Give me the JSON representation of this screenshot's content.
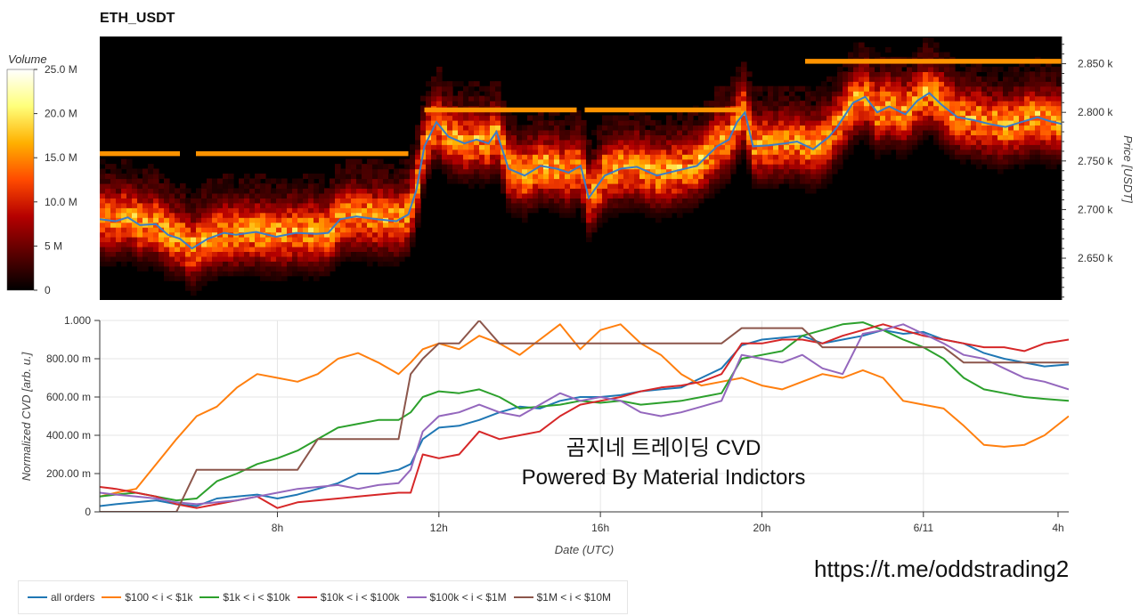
{
  "chart_data": [
    {
      "type": "heatmap",
      "title": "ETH_USDT",
      "ylabel": "Price [USDT]",
      "colorbar_label": "Volume",
      "colorbar_ticks": [
        "25.0 M",
        "20.0 M",
        "15.0 M",
        "10.0 M",
        "5 M",
        "0"
      ],
      "colorbar_values": [
        25,
        20,
        15,
        10,
        5,
        0
      ],
      "color_scale": [
        "#000000",
        "#5a0000",
        "#b40000",
        "#ff4a00",
        "#ffb000",
        "#ffff7a",
        "#ffffff"
      ],
      "x_range_hours": [
        3.6,
        27.6
      ],
      "ylim": [
        2607,
        2878
      ],
      "ytick_labels": [
        "2.850 k",
        "2.800 k",
        "2.750 k",
        "2.700 k",
        "2.650 k"
      ],
      "ytick_values": [
        2850,
        2800,
        2750,
        2700,
        2650
      ],
      "price_series": {
        "x": [
          3.6,
          4.0,
          4.3,
          4.6,
          5.0,
          5.3,
          5.6,
          5.9,
          6.3,
          6.7,
          7.0,
          7.5,
          8.0,
          8.5,
          9.0,
          9.3,
          9.6,
          10.0,
          10.5,
          11.0,
          11.3,
          11.5,
          11.7,
          12.0,
          12.3,
          12.7,
          13.0,
          13.3,
          13.5,
          13.8,
          14.2,
          14.6,
          15.0,
          15.3,
          15.6,
          15.8,
          16.2,
          16.6,
          17.0,
          17.5,
          18.0,
          18.5,
          19.0,
          19.3,
          19.5,
          19.7,
          19.9,
          20.3,
          20.7,
          21.0,
          21.4,
          21.8,
          22.0,
          22.4,
          22.7,
          23.0,
          23.3,
          23.7,
          24.0,
          24.3,
          24.6,
          25.0,
          25.4,
          25.8,
          26.2,
          26.6,
          27.0,
          27.3,
          27.6
        ],
        "values": [
          2690,
          2688,
          2692,
          2684,
          2685,
          2674,
          2670,
          2660,
          2670,
          2676,
          2674,
          2677,
          2672,
          2676,
          2675,
          2676,
          2690,
          2693,
          2690,
          2688,
          2695,
          2720,
          2765,
          2790,
          2775,
          2768,
          2772,
          2768,
          2780,
          2742,
          2735,
          2745,
          2742,
          2738,
          2745,
          2712,
          2735,
          2742,
          2744,
          2735,
          2740,
          2745,
          2765,
          2772,
          2790,
          2800,
          2765,
          2766,
          2768,
          2770,
          2762,
          2775,
          2785,
          2810,
          2816,
          2800,
          2806,
          2798,
          2812,
          2820,
          2808,
          2795,
          2792,
          2788,
          2785,
          2790,
          2795,
          2791,
          2788
        ]
      }
    },
    {
      "type": "line",
      "xlabel": "Date (UTC)",
      "ylabel": "Normalized CVD [arb. u.]",
      "x_range_hours": [
        3.6,
        27.6
      ],
      "ylim": [
        0,
        1
      ],
      "xtick_labels": [
        "8h",
        "12h",
        "16h",
        "20h",
        "6/11",
        "4h"
      ],
      "xtick_values": [
        8,
        12,
        16,
        20,
        24,
        28
      ],
      "ytick_labels": [
        "1.000",
        "800.00 m",
        "600.00 m",
        "400.00 m",
        "200.00 m",
        "0"
      ],
      "ytick_values": [
        1.0,
        0.8,
        0.6,
        0.4,
        0.2,
        0
      ],
      "x": [
        3.6,
        4.0,
        4.5,
        5.0,
        5.5,
        6.0,
        6.5,
        7.0,
        7.5,
        8.0,
        8.5,
        9.0,
        9.5,
        10.0,
        10.5,
        11.0,
        11.3,
        11.6,
        12.0,
        12.5,
        13.0,
        13.5,
        14.0,
        14.5,
        15.0,
        15.5,
        16.0,
        16.5,
        17.0,
        17.5,
        18.0,
        18.5,
        19.0,
        19.5,
        20.0,
        20.5,
        21.0,
        21.5,
        22.0,
        22.5,
        23.0,
        23.5,
        24.0,
        24.5,
        25.0,
        25.5,
        26.0,
        26.5,
        27.0,
        27.6
      ],
      "series": [
        {
          "name": "all orders",
          "color": "#1f77b4",
          "values": [
            0.03,
            0.04,
            0.05,
            0.06,
            0.04,
            0.03,
            0.07,
            0.08,
            0.09,
            0.07,
            0.09,
            0.12,
            0.15,
            0.2,
            0.2,
            0.22,
            0.25,
            0.38,
            0.44,
            0.45,
            0.48,
            0.52,
            0.55,
            0.54,
            0.58,
            0.6,
            0.6,
            0.61,
            0.63,
            0.64,
            0.65,
            0.7,
            0.75,
            0.87,
            0.9,
            0.91,
            0.92,
            0.88,
            0.9,
            0.92,
            0.95,
            0.93,
            0.94,
            0.9,
            0.88,
            0.83,
            0.8,
            0.78,
            0.76,
            0.77
          ]
        },
        {
          "name": "$100 < i < $1k",
          "color": "#ff7f0e",
          "values": [
            0.08,
            0.1,
            0.12,
            0.25,
            0.38,
            0.5,
            0.55,
            0.65,
            0.72,
            0.7,
            0.68,
            0.72,
            0.8,
            0.83,
            0.78,
            0.72,
            0.78,
            0.85,
            0.88,
            0.85,
            0.92,
            0.88,
            0.82,
            0.9,
            0.98,
            0.85,
            0.95,
            0.98,
            0.88,
            0.82,
            0.72,
            0.66,
            0.68,
            0.7,
            0.66,
            0.64,
            0.68,
            0.72,
            0.7,
            0.74,
            0.7,
            0.58,
            0.56,
            0.54,
            0.45,
            0.35,
            0.34,
            0.35,
            0.4,
            0.5
          ]
        },
        {
          "name": "$1k < i < $10k",
          "color": "#2ca02c",
          "values": [
            0.08,
            0.09,
            0.1,
            0.08,
            0.06,
            0.07,
            0.16,
            0.2,
            0.25,
            0.28,
            0.32,
            0.38,
            0.44,
            0.46,
            0.48,
            0.48,
            0.52,
            0.6,
            0.63,
            0.62,
            0.64,
            0.6,
            0.54,
            0.55,
            0.56,
            0.58,
            0.57,
            0.58,
            0.56,
            0.57,
            0.58,
            0.6,
            0.62,
            0.8,
            0.82,
            0.84,
            0.92,
            0.95,
            0.98,
            0.99,
            0.95,
            0.9,
            0.86,
            0.8,
            0.7,
            0.64,
            0.62,
            0.6,
            0.59,
            0.58
          ]
        },
        {
          "name": "$10k < i < $100k",
          "color": "#d62728",
          "values": [
            0.13,
            0.12,
            0.1,
            0.08,
            0.04,
            0.02,
            0.04,
            0.06,
            0.08,
            0.02,
            0.05,
            0.06,
            0.07,
            0.08,
            0.09,
            0.1,
            0.1,
            0.3,
            0.28,
            0.3,
            0.42,
            0.38,
            0.4,
            0.42,
            0.5,
            0.56,
            0.58,
            0.6,
            0.63,
            0.65,
            0.66,
            0.68,
            0.72,
            0.88,
            0.88,
            0.9,
            0.9,
            0.88,
            0.92,
            0.95,
            0.98,
            0.95,
            0.92,
            0.9,
            0.88,
            0.86,
            0.86,
            0.84,
            0.88,
            0.9
          ]
        },
        {
          "name": "$100k < i < $1M",
          "color": "#9467bd",
          "values": [
            0.1,
            0.09,
            0.08,
            0.07,
            0.05,
            0.04,
            0.05,
            0.06,
            0.08,
            0.1,
            0.12,
            0.13,
            0.14,
            0.12,
            0.14,
            0.15,
            0.22,
            0.42,
            0.5,
            0.52,
            0.56,
            0.52,
            0.5,
            0.56,
            0.62,
            0.58,
            0.6,
            0.58,
            0.52,
            0.5,
            0.52,
            0.55,
            0.58,
            0.82,
            0.8,
            0.78,
            0.82,
            0.75,
            0.72,
            0.93,
            0.95,
            0.98,
            0.93,
            0.88,
            0.82,
            0.8,
            0.75,
            0.7,
            0.68,
            0.64
          ]
        },
        {
          "name": "$1M < i < $10M",
          "color": "#8c564b",
          "values": [
            0.0,
            0.0,
            0.0,
            0.0,
            0.0,
            0.22,
            0.22,
            0.22,
            0.22,
            0.22,
            0.22,
            0.38,
            0.38,
            0.38,
            0.38,
            0.38,
            0.72,
            0.8,
            0.88,
            0.88,
            1.0,
            0.88,
            0.88,
            0.88,
            0.88,
            0.88,
            0.88,
            0.88,
            0.88,
            0.88,
            0.88,
            0.88,
            0.88,
            0.96,
            0.96,
            0.96,
            0.96,
            0.86,
            0.86,
            0.86,
            0.86,
            0.86,
            0.86,
            0.86,
            0.78,
            0.78,
            0.78,
            0.78,
            0.78,
            0.78
          ]
        }
      ]
    }
  ],
  "watermark": {
    "line1": "곰지네 트레이딩 CVD",
    "line2": "Powered By Material Indictors"
  },
  "link": "https://t.me/oddstrading2"
}
